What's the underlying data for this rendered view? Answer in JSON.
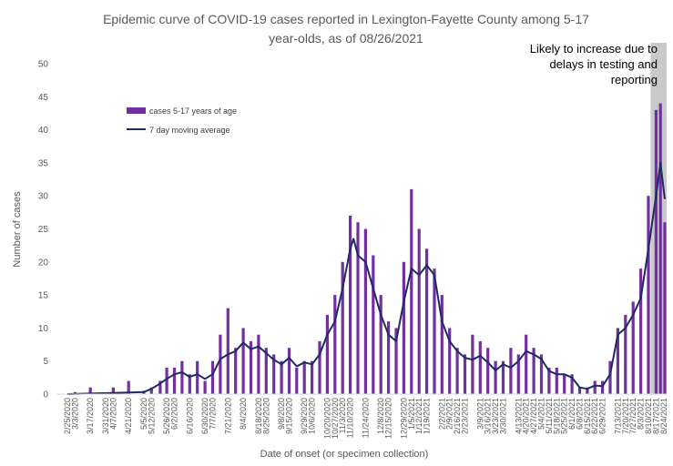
{
  "chart_data": {
    "type": "bar",
    "title": "Epidemic curve of COVID-19 cases reported in Lexington-Fayette County among 5-17 year-olds, as of 08/26/2021",
    "title_lines": [
      "Epidemic curve of COVID-19 cases reported in Lexington-Fayette County among 5-17",
      "year-olds, as of 08/26/2021"
    ],
    "xlabel": "Date of onset (or specimen collection)",
    "ylabel": "Number of cases",
    "ylim": [
      0,
      50
    ],
    "yticks": [
      0,
      5,
      10,
      15,
      20,
      25,
      30,
      35,
      40,
      45,
      50
    ],
    "grid": false,
    "legend_position": "top-left",
    "x_start": "2/25/2020",
    "x_end": "8/25/2021",
    "x_tick_labels": [
      "2/25/2020",
      "3/3/2020",
      "3/17/2020",
      "3/31/2020",
      "4/7/2020",
      "4/21/2020",
      "5/5/2020",
      "5/12/2020",
      "5/26/2020",
      "6/2/2020",
      "6/16/2020",
      "6/30/2020",
      "7/7/2020",
      "7/21/2020",
      "8/4/2020",
      "8/18/2020",
      "8/25/2020",
      "9/8/2020",
      "9/15/2020",
      "9/29/2020",
      "10/6/2020",
      "10/20/2020",
      "10/27/2020",
      "11/3/2020",
      "11/10/2020",
      "11/24/2020",
      "12/8/2020",
      "12/15/2020",
      "12/29/2020",
      "1/5/2021",
      "1/12/2021",
      "1/19/2021",
      "2/2/2021",
      "2/9/2021",
      "2/16/2021",
      "2/23/2021",
      "3/9/2021",
      "3/16/2021",
      "3/23/2021",
      "3/30/2021",
      "4/13/2021",
      "4/20/2021",
      "4/27/2021",
      "5/4/2021",
      "5/11/2021",
      "5/18/2021",
      "5/25/2021",
      "6/1/2021",
      "6/8/2021",
      "6/15/2021",
      "6/22/2021",
      "6/29/2021",
      "7/13/2021",
      "7/20/2021",
      "7/27/2021",
      "8/3/2021",
      "8/10/2021",
      "8/17/2021",
      "8/24/2021"
    ],
    "series": [
      {
        "name": "cases 5-17 years of age",
        "kind": "bar",
        "color": "#7030A0",
        "points": [
          [
            "3/3/2020",
            0.3
          ],
          [
            "3/17/2020",
            1
          ],
          [
            "4/7/2020",
            1
          ],
          [
            "4/21/2020",
            2
          ],
          [
            "5/5/2020",
            0.5
          ],
          [
            "5/12/2020",
            1
          ],
          [
            "5/20/2020",
            2
          ],
          [
            "5/26/2020",
            4
          ],
          [
            "6/2/2020",
            4
          ],
          [
            "6/9/2020",
            5
          ],
          [
            "6/16/2020",
            3
          ],
          [
            "6/23/2020",
            5
          ],
          [
            "6/30/2020",
            2
          ],
          [
            "7/7/2020",
            5
          ],
          [
            "7/14/2020",
            9
          ],
          [
            "7/21/2020",
            13
          ],
          [
            "7/28/2020",
            7
          ],
          [
            "8/4/2020",
            10
          ],
          [
            "8/11/2020",
            8
          ],
          [
            "8/18/2020",
            9
          ],
          [
            "8/25/2020",
            7
          ],
          [
            "9/1/2020",
            6
          ],
          [
            "9/8/2020",
            5
          ],
          [
            "9/15/2020",
            7
          ],
          [
            "9/22/2020",
            4
          ],
          [
            "9/29/2020",
            5
          ],
          [
            "10/6/2020",
            5
          ],
          [
            "10/13/2020",
            8
          ],
          [
            "10/20/2020",
            12
          ],
          [
            "10/27/2020",
            15
          ],
          [
            "11/3/2020",
            20
          ],
          [
            "11/10/2020",
            27
          ],
          [
            "11/17/2020",
            26
          ],
          [
            "11/24/2020",
            25
          ],
          [
            "12/1/2020",
            21
          ],
          [
            "12/8/2020",
            15
          ],
          [
            "12/15/2020",
            11
          ],
          [
            "12/22/2020",
            10
          ],
          [
            "12/29/2020",
            20
          ],
          [
            "1/5/2021",
            31
          ],
          [
            "1/12/2021",
            25
          ],
          [
            "1/19/2021",
            22
          ],
          [
            "1/26/2021",
            19
          ],
          [
            "2/2/2021",
            15
          ],
          [
            "2/9/2021",
            10
          ],
          [
            "2/16/2021",
            7
          ],
          [
            "2/23/2021",
            6
          ],
          [
            "3/2/2021",
            9
          ],
          [
            "3/9/2021",
            8
          ],
          [
            "3/16/2021",
            7
          ],
          [
            "3/23/2021",
            5
          ],
          [
            "3/30/2021",
            5
          ],
          [
            "4/6/2021",
            7
          ],
          [
            "4/13/2021",
            6
          ],
          [
            "4/20/2021",
            9
          ],
          [
            "4/27/2021",
            7
          ],
          [
            "5/4/2021",
            6
          ],
          [
            "5/11/2021",
            4
          ],
          [
            "5/18/2021",
            4
          ],
          [
            "5/25/2021",
            3
          ],
          [
            "6/1/2021",
            3
          ],
          [
            "6/8/2021",
            1
          ],
          [
            "6/15/2021",
            1
          ],
          [
            "6/22/2021",
            2
          ],
          [
            "6/29/2021",
            2
          ],
          [
            "7/6/2021",
            5
          ],
          [
            "7/13/2021",
            10
          ],
          [
            "7/20/2021",
            12
          ],
          [
            "7/27/2021",
            14
          ],
          [
            "8/3/2021",
            19
          ],
          [
            "8/10/2021",
            30
          ],
          [
            "8/17/2021",
            43
          ],
          [
            "8/21/2021",
            44
          ],
          [
            "8/25/2021",
            26
          ]
        ]
      },
      {
        "name": "7 day moving average",
        "kind": "line",
        "color": "#1F2A63",
        "points": [
          [
            "2/25/2020",
            0
          ],
          [
            "4/14/2020",
            0.2
          ],
          [
            "5/5/2020",
            0.3
          ],
          [
            "5/12/2020",
            0.8
          ],
          [
            "5/19/2020",
            1.5
          ],
          [
            "5/26/2020",
            2.3
          ],
          [
            "6/2/2020",
            3
          ],
          [
            "6/9/2020",
            3.3
          ],
          [
            "6/16/2020",
            2.6
          ],
          [
            "6/23/2020",
            3
          ],
          [
            "6/30/2020",
            2.3
          ],
          [
            "7/7/2020",
            3
          ],
          [
            "7/14/2020",
            5.3
          ],
          [
            "7/21/2020",
            6
          ],
          [
            "7/28/2020",
            6.5
          ],
          [
            "8/4/2020",
            7.8
          ],
          [
            "8/11/2020",
            6.8
          ],
          [
            "8/18/2020",
            7.2
          ],
          [
            "8/25/2020",
            6.2
          ],
          [
            "9/1/2020",
            5.2
          ],
          [
            "9/8/2020",
            4.5
          ],
          [
            "9/15/2020",
            5.5
          ],
          [
            "9/22/2020",
            4.2
          ],
          [
            "9/29/2020",
            4.8
          ],
          [
            "10/6/2020",
            4.5
          ],
          [
            "10/13/2020",
            6
          ],
          [
            "10/20/2020",
            9
          ],
          [
            "10/27/2020",
            11
          ],
          [
            "11/3/2020",
            16
          ],
          [
            "11/10/2020",
            22
          ],
          [
            "11/13/2020",
            23.5
          ],
          [
            "11/17/2020",
            21
          ],
          [
            "11/24/2020",
            20
          ],
          [
            "12/1/2020",
            16
          ],
          [
            "12/8/2020",
            12
          ],
          [
            "12/15/2020",
            9
          ],
          [
            "12/22/2020",
            8
          ],
          [
            "12/29/2020",
            14
          ],
          [
            "1/5/2021",
            19
          ],
          [
            "1/12/2021",
            18
          ],
          [
            "1/19/2021",
            19.5
          ],
          [
            "1/26/2021",
            18
          ],
          [
            "2/2/2021",
            11
          ],
          [
            "2/9/2021",
            8
          ],
          [
            "2/16/2021",
            6.5
          ],
          [
            "2/23/2021",
            5.5
          ],
          [
            "3/2/2021",
            5.2
          ],
          [
            "3/9/2021",
            5.8
          ],
          [
            "3/16/2021",
            4.8
          ],
          [
            "3/23/2021",
            3.6
          ],
          [
            "3/30/2021",
            4.5
          ],
          [
            "4/6/2021",
            4
          ],
          [
            "4/13/2021",
            5
          ],
          [
            "4/20/2021",
            6.5
          ],
          [
            "4/27/2021",
            6
          ],
          [
            "5/4/2021",
            5.3
          ],
          [
            "5/11/2021",
            3.5
          ],
          [
            "5/18/2021",
            3
          ],
          [
            "5/25/2021",
            3
          ],
          [
            "6/1/2021",
            2.5
          ],
          [
            "6/8/2021",
            1
          ],
          [
            "6/15/2021",
            0.8
          ],
          [
            "6/22/2021",
            1.3
          ],
          [
            "6/29/2021",
            1.2
          ],
          [
            "7/6/2021",
            3
          ],
          [
            "7/13/2021",
            9
          ],
          [
            "7/20/2021",
            10
          ],
          [
            "7/27/2021",
            12
          ],
          [
            "8/3/2021",
            14.5
          ],
          [
            "8/10/2021",
            22
          ],
          [
            "8/17/2021",
            30
          ],
          [
            "8/21/2021",
            35
          ],
          [
            "8/25/2021",
            29.5
          ]
        ]
      }
    ],
    "shaded_region": {
      "from": "8/12/2021",
      "to": "8/25/2021",
      "color": "#BFBFBF",
      "label_lines": [
        "Likely to increase due to",
        "delays in testing and",
        "reporting"
      ]
    }
  }
}
